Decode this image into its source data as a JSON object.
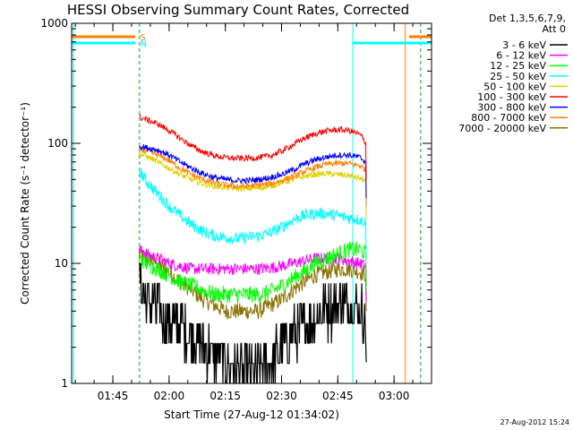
{
  "chart_data": {
    "type": "line",
    "title": "HESSI Observing Summary Count Rates, Corrected",
    "xlabel": "Start Time (27-Aug-12 01:34:02)",
    "ylabel": "Corrected Count Rate (s⁻¹ detector⁻¹)",
    "y_scale": "log",
    "ylim": [
      1,
      1000
    ],
    "xlim_minutes_since_0134": [
      0,
      96
    ],
    "x_ticks": [
      {
        "label": "01:45",
        "t": 11
      },
      {
        "label": "02:00",
        "t": 26
      },
      {
        "label": "02:15",
        "t": 41
      },
      {
        "label": "02:30",
        "t": 56
      },
      {
        "label": "02:45",
        "t": 71
      },
      {
        "label": "03:00",
        "t": 86
      }
    ],
    "y_ticks": [
      {
        "label": "1",
        "v": 1
      },
      {
        "label": "10",
        "v": 10
      },
      {
        "label": "100",
        "v": 100
      },
      {
        "label": "1000",
        "v": 1000
      }
    ],
    "legend_header": [
      "Det 1,3,5,6,7,9,",
      "Att 0"
    ],
    "legend_position": "right",
    "flags": [
      {
        "label": "S",
        "color": "#ff8000"
      },
      {
        "label": "N",
        "color": "#00ffff"
      }
    ],
    "series": [
      {
        "name": "3 - 6 keV",
        "color": "#000000",
        "x": [
          18,
          20,
          23,
          26,
          29,
          32,
          35,
          38,
          41,
          44,
          47,
          50,
          53,
          56,
          59,
          62,
          65,
          68,
          71,
          74,
          77,
          78.5
        ],
        "values": [
          7,
          5,
          4,
          3.2,
          3,
          2.5,
          2,
          1.8,
          1.5,
          1.3,
          1.2,
          1.3,
          1.5,
          2,
          2.5,
          3,
          3.5,
          4,
          4.5,
          4.5,
          4,
          3
        ]
      },
      {
        "name": "6 - 12 keV",
        "color": "#ff00ff",
        "x": [
          18,
          20,
          23,
          26,
          29,
          32,
          35,
          38,
          41,
          44,
          47,
          50,
          53,
          56,
          59,
          62,
          65,
          68,
          71,
          74,
          77,
          78.5
        ],
        "values": [
          13,
          12,
          11,
          10,
          9.5,
          9,
          9,
          9,
          9,
          9,
          9,
          9,
          9.2,
          9.5,
          10,
          10.5,
          11,
          11,
          11,
          10.5,
          10,
          9.5
        ]
      },
      {
        "name": "12 - 25 keV",
        "color": "#00ff00",
        "x": [
          18,
          20,
          23,
          26,
          29,
          32,
          35,
          38,
          41,
          44,
          47,
          50,
          53,
          56,
          59,
          62,
          65,
          68,
          71,
          74,
          77,
          78.5
        ],
        "values": [
          11,
          10,
          9,
          8,
          7,
          6.5,
          6,
          5.5,
          5.5,
          5.5,
          5.5,
          5.5,
          5.8,
          6.5,
          7.5,
          8.5,
          10,
          11,
          12,
          13,
          13,
          12
        ]
      },
      {
        "name": "25 - 50 keV",
        "color": "#00ffff",
        "x": [
          18,
          20,
          23,
          26,
          29,
          32,
          35,
          38,
          41,
          44,
          47,
          50,
          53,
          56,
          59,
          62,
          65,
          68,
          71,
          74,
          77,
          78.5
        ],
        "values": [
          60,
          48,
          38,
          30,
          25,
          21,
          18.5,
          17,
          16.5,
          16,
          16.5,
          17,
          18,
          20,
          23,
          25,
          26,
          26,
          25,
          24,
          23,
          22
        ]
      },
      {
        "name": "50 - 100 keV",
        "color": "#e0d000",
        "x": [
          18,
          20,
          23,
          26,
          29,
          32,
          35,
          38,
          41,
          44,
          47,
          50,
          53,
          56,
          59,
          62,
          65,
          68,
          71,
          74,
          77,
          78.5
        ],
        "values": [
          82,
          78,
          70,
          62,
          55,
          50,
          46,
          44,
          43,
          42,
          42,
          42.5,
          44,
          47,
          50,
          53,
          55,
          56,
          55,
          54,
          51,
          48
        ]
      },
      {
        "name": "100 - 300 keV",
        "color": "#ff0000",
        "x": [
          18,
          20,
          23,
          26,
          29,
          32,
          35,
          38,
          41,
          44,
          47,
          50,
          53,
          56,
          59,
          62,
          65,
          68,
          71,
          74,
          77,
          78.5
        ],
        "values": [
          165,
          158,
          145,
          128,
          110,
          95,
          85,
          79,
          76,
          75,
          75,
          76,
          79,
          86,
          97,
          110,
          120,
          127,
          130,
          128,
          118,
          100
        ]
      },
      {
        "name": "300 - 800 keV",
        "color": "#0000ff",
        "x": [
          18,
          20,
          23,
          26,
          29,
          32,
          35,
          38,
          41,
          44,
          47,
          50,
          53,
          56,
          59,
          62,
          65,
          68,
          71,
          74,
          77,
          78.5
        ],
        "values": [
          95,
          92,
          88,
          80,
          70,
          62,
          56,
          52,
          50,
          49,
          49,
          50,
          52,
          55,
          60,
          67,
          73,
          77,
          80,
          80,
          76,
          70
        ]
      },
      {
        "name": "800 - 7000 keV",
        "color": "#ff8000",
        "x": [
          18,
          20,
          23,
          26,
          29,
          32,
          35,
          38,
          41,
          44,
          47,
          50,
          53,
          56,
          59,
          62,
          65,
          68,
          71,
          74,
          77,
          78.5
        ],
        "values": [
          90,
          86,
          80,
          72,
          62,
          55,
          50,
          47,
          45,
          44,
          44,
          45,
          46,
          49,
          53,
          58,
          63,
          67,
          68,
          68,
          65,
          60
        ]
      },
      {
        "name": "7000 - 20000 keV",
        "color": "#8b7000",
        "x": [
          18,
          20,
          23,
          26,
          29,
          32,
          35,
          38,
          41,
          44,
          47,
          50,
          53,
          56,
          59,
          62,
          65,
          68,
          71,
          74,
          77,
          78.5
        ],
        "values": [
          12,
          11,
          10,
          8.5,
          7,
          6,
          5,
          4.5,
          4,
          4,
          4,
          4,
          4.5,
          5,
          6,
          7,
          8,
          8.5,
          9,
          9,
          8.5,
          8
        ]
      }
    ],
    "vertical_markers": [
      {
        "t": 0.5,
        "color": "#00ffff",
        "style": "solid"
      },
      {
        "t": 18,
        "color": "#ff8000",
        "style": "dashed"
      },
      {
        "t": 18,
        "color": "#00ffff",
        "style": "dashed"
      },
      {
        "t": 75,
        "color": "#00ffff",
        "style": "solid"
      },
      {
        "t": 89,
        "color": "#ff8000",
        "style": "solid"
      },
      {
        "t": 93,
        "color": "#ff8000",
        "style": "dashed"
      },
      {
        "t": 93,
        "color": "#00ffff",
        "style": "dashed"
      }
    ],
    "flag_segments": [
      {
        "flag": "S",
        "color": "#ff8000",
        "ranges": [
          [
            0,
            17
          ],
          [
            90,
            96
          ]
        ]
      },
      {
        "flag": "N",
        "color": "#00ffff",
        "ranges": [
          [
            0,
            17
          ],
          [
            75,
            96
          ]
        ]
      }
    ]
  },
  "footer": {
    "timestamp": "27-Aug-2012 15:24"
  }
}
